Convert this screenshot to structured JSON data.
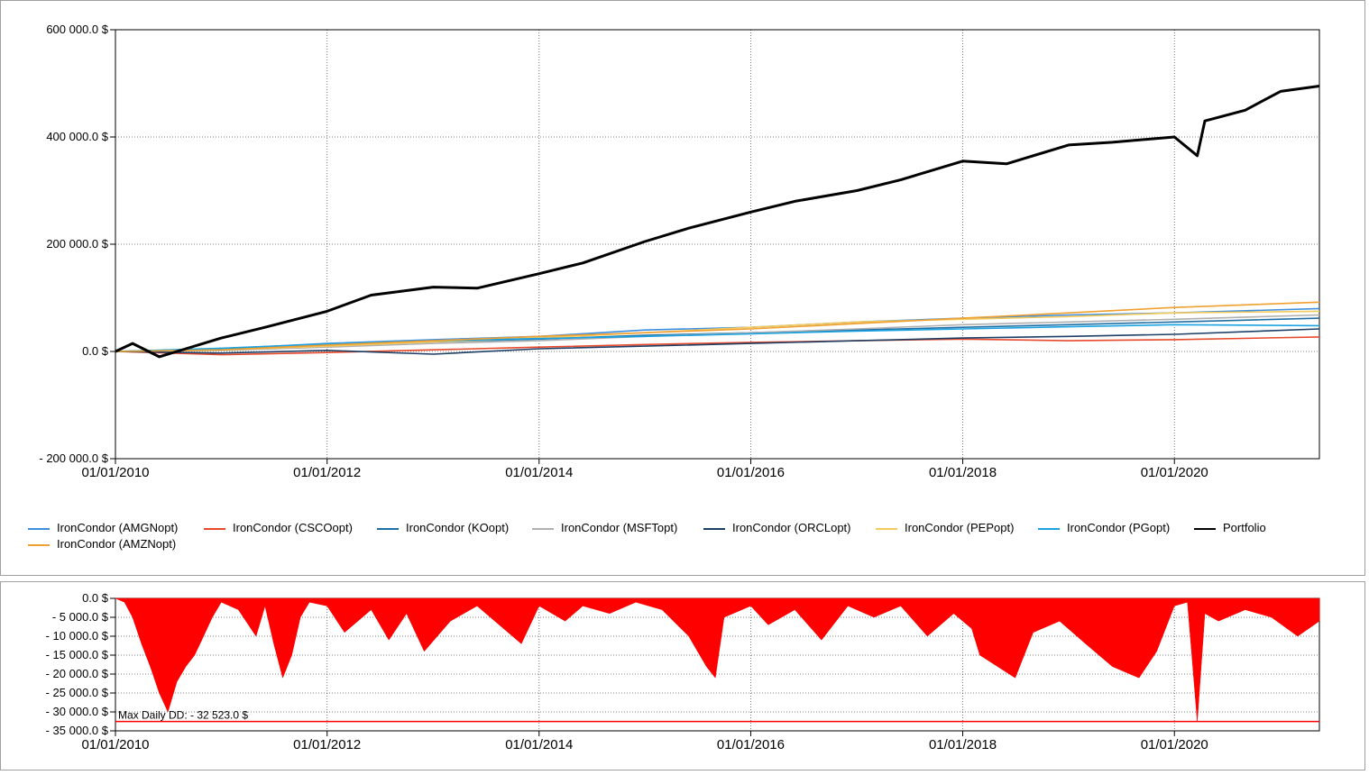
{
  "chart_data": [
    {
      "type": "line",
      "title": "",
      "xlabel": "",
      "ylabel": "",
      "x_ticks": [
        "01/01/2010",
        "01/01/2012",
        "01/01/2014",
        "01/01/2016",
        "01/01/2018",
        "01/01/2020"
      ],
      "y_ticks": [
        "600 000.0 $",
        "400 000.0 $",
        "200 000.0 $",
        "0.0 $",
        "- 200 000.0 $"
      ],
      "xlim": [
        "2010-01-01",
        "2021-05-15"
      ],
      "ylim": [
        -200000,
        600000
      ],
      "grid": true,
      "legend_position": "bottom",
      "series": [
        {
          "name": "IronCondor (AMGNopt)",
          "color": "#3c8fe0",
          "x": [
            "2010-01-01",
            "2011-01-01",
            "2012-01-01",
            "2013-01-01",
            "2014-01-01",
            "2015-01-01",
            "2016-01-01",
            "2017-01-01",
            "2018-01-01",
            "2019-01-01",
            "2020-01-01",
            "2021-05-15"
          ],
          "y": [
            0,
            5000,
            15000,
            22000,
            28000,
            40000,
            45000,
            55000,
            62000,
            68000,
            72000,
            80000
          ]
        },
        {
          "name": "IronCondor (CSCOopt)",
          "color": "#e8492a",
          "x": [
            "2010-01-01",
            "2011-01-01",
            "2012-01-01",
            "2013-01-01",
            "2014-01-01",
            "2015-01-01",
            "2016-01-01",
            "2017-01-01",
            "2018-01-01",
            "2019-01-01",
            "2020-01-01",
            "2021-05-15"
          ],
          "y": [
            0,
            -6000,
            -2000,
            3000,
            8000,
            13000,
            17000,
            20000,
            23000,
            20000,
            22000,
            27000
          ]
        },
        {
          "name": "IronCondor (KOopt)",
          "color": "#1f6fa6",
          "x": [
            "2010-01-01",
            "2011-01-01",
            "2012-01-01",
            "2013-01-01",
            "2014-01-01",
            "2015-01-01",
            "2016-01-01",
            "2017-01-01",
            "2018-01-01",
            "2019-01-01",
            "2020-01-01",
            "2021-05-15"
          ],
          "y": [
            0,
            4000,
            12000,
            18000,
            23000,
            30000,
            35000,
            40000,
            45000,
            50000,
            55000,
            62000
          ]
        },
        {
          "name": "IronCondor (MSFTopt)",
          "color": "#b0b0b0",
          "x": [
            "2010-01-01",
            "2011-01-01",
            "2012-01-01",
            "2013-01-01",
            "2014-01-01",
            "2015-01-01",
            "2016-01-01",
            "2017-01-01",
            "2018-01-01",
            "2019-01-01",
            "2020-01-01",
            "2021-05-15"
          ],
          "y": [
            0,
            2000,
            8000,
            15000,
            20000,
            28000,
            35000,
            42000,
            50000,
            55000,
            60000,
            68000
          ]
        },
        {
          "name": "IronCondor (ORCLopt)",
          "color": "#1d3f66",
          "x": [
            "2010-01-01",
            "2011-01-01",
            "2012-01-01",
            "2013-01-01",
            "2014-01-01",
            "2015-01-01",
            "2016-01-01",
            "2017-01-01",
            "2018-01-01",
            "2019-01-01",
            "2020-01-01",
            "2021-05-15"
          ],
          "y": [
            0,
            -3000,
            2000,
            -5000,
            5000,
            10000,
            15000,
            20000,
            25000,
            28000,
            32000,
            42000
          ]
        },
        {
          "name": "IronCondor (PEPopt)",
          "color": "#f5c95a",
          "x": [
            "2010-01-01",
            "2011-01-01",
            "2012-01-01",
            "2013-01-01",
            "2014-01-01",
            "2015-01-01",
            "2016-01-01",
            "2017-01-01",
            "2018-01-01",
            "2019-01-01",
            "2020-01-01",
            "2021-05-15"
          ],
          "y": [
            0,
            3000,
            10000,
            18000,
            25000,
            35000,
            45000,
            55000,
            60000,
            65000,
            72000,
            75000
          ]
        },
        {
          "name": "IronCondor (PGopt)",
          "color": "#1aa3e0",
          "x": [
            "2010-01-01",
            "2011-01-01",
            "2012-01-01",
            "2013-01-01",
            "2014-01-01",
            "2015-01-01",
            "2016-01-01",
            "2017-01-01",
            "2018-01-01",
            "2019-01-01",
            "2020-01-01",
            "2021-05-15"
          ],
          "y": [
            0,
            6000,
            14000,
            20000,
            24000,
            28000,
            33000,
            38000,
            42000,
            46000,
            50000,
            48000
          ]
        },
        {
          "name": "Portfolio",
          "color": "#000000",
          "x": [
            "2010-01-01",
            "2010-03-01",
            "2010-06-01",
            "2010-09-01",
            "2011-01-01",
            "2011-06-01",
            "2012-01-01",
            "2012-06-01",
            "2013-01-01",
            "2013-06-01",
            "2014-01-01",
            "2014-06-01",
            "2015-01-01",
            "2015-06-01",
            "2016-01-01",
            "2016-06-01",
            "2017-01-01",
            "2017-06-01",
            "2018-01-01",
            "2018-06-01",
            "2019-01-01",
            "2019-06-01",
            "2020-01-01",
            "2020-03-20",
            "2020-04-15",
            "2020-09-01",
            "2021-01-01",
            "2021-05-15"
          ],
          "y": [
            0,
            15000,
            -10000,
            5000,
            25000,
            45000,
            75000,
            105000,
            120000,
            118000,
            145000,
            165000,
            205000,
            230000,
            260000,
            280000,
            300000,
            320000,
            355000,
            350000,
            385000,
            390000,
            400000,
            365000,
            430000,
            450000,
            485000,
            495000
          ]
        },
        {
          "name": "IronCondor (AMZNopt)",
          "color": "#f0a030",
          "x": [
            "2010-01-01",
            "2011-01-01",
            "2012-01-01",
            "2013-01-01",
            "2014-01-01",
            "2015-01-01",
            "2016-01-01",
            "2017-01-01",
            "2018-01-01",
            "2019-01-01",
            "2020-01-01",
            "2021-05-15"
          ],
          "y": [
            0,
            3000,
            12000,
            20000,
            28000,
            35000,
            42000,
            52000,
            62000,
            72000,
            82000,
            92000
          ]
        }
      ]
    },
    {
      "type": "area",
      "title": "",
      "x_ticks": [
        "01/01/2010",
        "01/01/2012",
        "01/01/2014",
        "01/01/2016",
        "01/01/2018",
        "01/01/2020"
      ],
      "y_ticks": [
        "0.0 $",
        "- 5 000.0 $",
        "- 10 000.0 $",
        "- 15 000.0 $",
        "- 20 000.0 $",
        "- 25 000.0 $",
        "- 30 000.0 $",
        "- 35 000.0 $"
      ],
      "xlim": [
        "2010-01-01",
        "2021-05-15"
      ],
      "ylim": [
        -35000,
        0
      ],
      "grid": true,
      "color": "#ff0000",
      "annotation": "Max Daily DD: - 32 523.0 $",
      "max_dd_value": -32523,
      "series": [
        {
          "x": [
            "2010-01-01",
            "2010-02-01",
            "2010-03-01",
            "2010-04-01",
            "2010-05-01",
            "2010-06-01",
            "2010-07-01",
            "2010-08-01",
            "2010-09-01",
            "2010-10-01",
            "2010-11-01",
            "2010-12-01",
            "2011-01-01",
            "2011-03-01",
            "2011-05-01",
            "2011-06-01",
            "2011-07-01",
            "2011-08-01",
            "2011-09-01",
            "2011-10-01",
            "2011-11-01",
            "2012-01-01",
            "2012-03-01",
            "2012-06-01",
            "2012-08-01",
            "2012-10-01",
            "2012-12-01",
            "2013-03-01",
            "2013-06-01",
            "2013-09-01",
            "2013-11-01",
            "2014-01-01",
            "2014-04-01",
            "2014-06-01",
            "2014-09-01",
            "2014-12-01",
            "2015-03-01",
            "2015-06-01",
            "2015-08-01",
            "2015-09-01",
            "2015-10-01",
            "2016-01-01",
            "2016-03-01",
            "2016-06-01",
            "2016-09-01",
            "2016-12-01",
            "2017-03-01",
            "2017-06-01",
            "2017-09-01",
            "2017-12-01",
            "2018-02-01",
            "2018-03-01",
            "2018-05-01",
            "2018-07-01",
            "2018-09-01",
            "2018-12-01",
            "2019-03-01",
            "2019-06-01",
            "2019-08-01",
            "2019-09-01",
            "2019-11-01",
            "2020-01-01",
            "2020-02-15",
            "2020-03-20",
            "2020-04-15",
            "2020-06-01",
            "2020-09-01",
            "2020-12-01",
            "2021-03-01",
            "2021-05-15"
          ],
          "y": [
            0,
            -1000,
            -5000,
            -12000,
            -18000,
            -25000,
            -30000,
            -22000,
            -18000,
            -15000,
            -10000,
            -5000,
            -1000,
            -3000,
            -10000,
            -2000,
            -12000,
            -21000,
            -15000,
            -5000,
            -1000,
            -2000,
            -9000,
            -3000,
            -11000,
            -4000,
            -14000,
            -6000,
            -2000,
            -8000,
            -12000,
            -2000,
            -6000,
            -2000,
            -4000,
            -1000,
            -3000,
            -10000,
            -18000,
            -21000,
            -5000,
            -2000,
            -7000,
            -3000,
            -11000,
            -2000,
            -5000,
            -2000,
            -10000,
            -4000,
            -8000,
            -15000,
            -18000,
            -21000,
            -9000,
            -6000,
            -12000,
            -18000,
            -20000,
            -21000,
            -14000,
            -2000,
            -1000,
            -32523,
            -4000,
            -6000,
            -3000,
            -5000,
            -10000,
            -6000
          ]
        }
      ]
    }
  ]
}
